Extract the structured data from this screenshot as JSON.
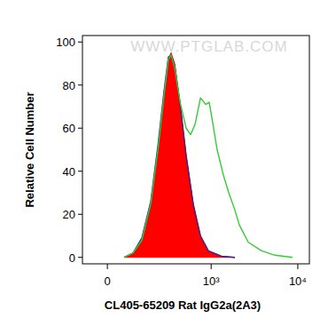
{
  "chart_data": {
    "type": "line",
    "annotation": "WWW.PTGLAB.COM",
    "x_label": "CL405-65209 Rat IgG2a(2A3)",
    "y_label": "Relative Cell Number",
    "log": "x",
    "xlim": [
      -91,
      13600
    ],
    "xticks": [
      0,
      {
        "value": 1000,
        "label": "10³"
      },
      {
        "value": 10000,
        "label": "10⁴"
      }
    ],
    "ylim": [
      -3,
      103
    ],
    "yticks": [
      0,
      20,
      40,
      60,
      80,
      100
    ],
    "series": [
      {
        "type": "area",
        "color": "#ff0000",
        "x": [
          59,
          94,
          134,
          182,
          228,
          273,
          310,
          335,
          371,
          431,
          509,
          620,
          751,
          929,
          1320,
          1880
        ],
        "values": [
          0,
          2,
          8,
          25,
          50,
          75,
          92,
          95,
          90,
          72,
          48,
          25,
          10,
          3,
          0.5,
          0
        ]
      },
      {
        "type": "line",
        "color": "#2e2a8c",
        "x": [
          59,
          94,
          134,
          182,
          228,
          273,
          310,
          335,
          371,
          431,
          509,
          620,
          751,
          929,
          1320,
          1880
        ],
        "values": [
          0,
          2,
          9,
          26,
          52,
          77,
          93,
          94,
          89,
          71,
          47,
          24,
          10,
          3,
          0.5,
          0
        ]
      },
      {
        "type": "line",
        "color": "#33cc33",
        "x": [
          59,
          94,
          134,
          182,
          228,
          273,
          310,
          335,
          371,
          431,
          509,
          576,
          651,
          751,
          866,
          949,
          1048,
          1173,
          1390,
          1600,
          1880,
          2120,
          2690,
          3830,
          5430,
          8680
        ],
        "values": [
          0,
          2,
          8,
          25,
          50,
          75,
          92,
          94,
          88,
          72,
          60,
          57,
          62,
          74,
          71,
          72,
          62,
          50,
          38,
          30,
          22,
          15,
          7,
          3,
          1,
          0
        ]
      }
    ]
  }
}
